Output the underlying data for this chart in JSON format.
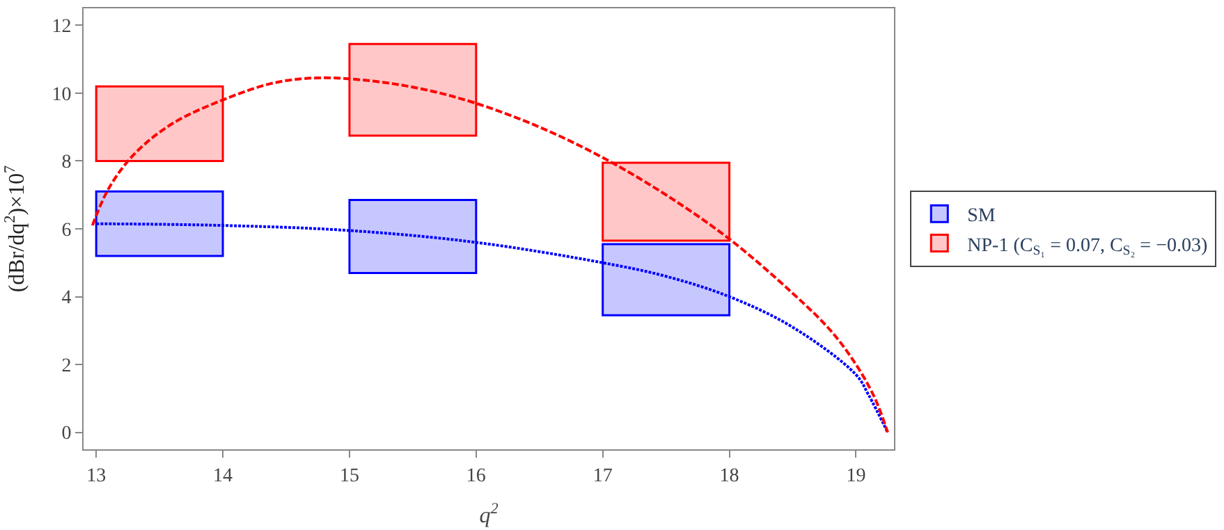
{
  "chart_data": {
    "type": "bar",
    "xlabel": "q$^{2}$",
    "ylabel": "(dBr/dq$^{2}$)×10$^{7}$",
    "xlim": [
      12.9,
      19.3
    ],
    "ylim": [
      -0.5,
      12.5
    ],
    "xticks": [
      13,
      14,
      15,
      16,
      17,
      18,
      19
    ],
    "yticks": [
      0,
      2,
      4,
      6,
      8,
      10,
      12
    ],
    "legend": "right",
    "series": [
      {
        "name": "SM",
        "color": "#0000ff",
        "x": [
          13.5,
          15.5,
          17.5
        ],
        "base": [
          5.2,
          4.7,
          3.45
        ],
        "values": [
          1.9,
          2.15,
          2.1
        ]
      },
      {
        "name": "NP-1 (C$_{S₁}$ = 0.07, C$_{S₂}$ = −0.03)",
        "color": "#ff0000",
        "x": [
          13.5,
          15.5,
          17.5
        ],
        "base": [
          8.0,
          8.75,
          5.65
        ],
        "values": [
          2.2,
          2.7,
          2.3
        ]
      },
      {
        "type": "line",
        "color": "#0000ff",
        "line_style": "dotted",
        "x": [
          13,
          14,
          15,
          16,
          17,
          17.5,
          18,
          18.5,
          19,
          19.1,
          19.25
        ],
        "values": [
          6.15,
          6.1,
          5.95,
          5.6,
          5.0,
          4.6,
          4.0,
          3.1,
          1.7,
          1.1,
          0
        ]
      },
      {
        "type": "line",
        "color": "#ff0000",
        "line_style": "dashed",
        "x": [
          12.97,
          13.1,
          13.3,
          13.6,
          14,
          14.4,
          14.75,
          15.2,
          15.6,
          16,
          16.5,
          17,
          17.5,
          18,
          18.5,
          18.8,
          19,
          19.15,
          19.25
        ],
        "values": [
          6.1,
          7.2,
          8.2,
          9.1,
          9.8,
          10.3,
          10.45,
          10.35,
          10.1,
          9.7,
          9.0,
          8.1,
          7.0,
          5.7,
          4.1,
          3.0,
          2.0,
          1.0,
          0
        ]
      }
    ]
  }
}
